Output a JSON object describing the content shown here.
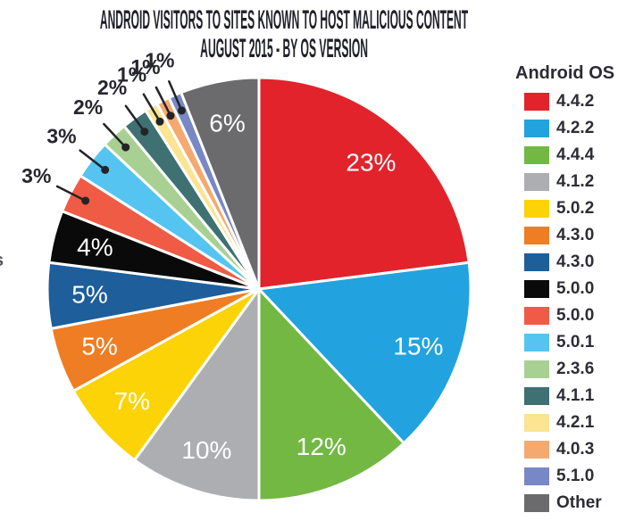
{
  "chart_data": {
    "type": "pie",
    "title": "ANDROID VISITORS TO SITES KNOWN TO HOST MALICIOUS CONTENT",
    "subtitle": "AUGUST 2015 - BY OS VERSION",
    "legend_title": "Android OS",
    "legend_position": "right",
    "start_angle_deg": 0,
    "direction": "clockwise",
    "units": "percent",
    "value_suffix": "%",
    "grid": false,
    "slices": [
      {
        "label": "4.4.2",
        "value": 23,
        "color": "#E2232B",
        "label_placement": "inside"
      },
      {
        "label": "4.2.2",
        "value": 15,
        "color": "#22A3DF",
        "label_placement": "inside"
      },
      {
        "label": "4.4.4",
        "value": 12,
        "color": "#72B843",
        "label_placement": "inside"
      },
      {
        "label": "4.1.2",
        "value": 10,
        "color": "#ACAEB1",
        "label_placement": "inside"
      },
      {
        "label": "5.0.2",
        "value": 7,
        "color": "#FBD306",
        "label_placement": "inside"
      },
      {
        "label": "4.3.0",
        "value": 5,
        "color": "#EF7D23",
        "label_placement": "inside"
      },
      {
        "label": "4.3.0",
        "value": 5,
        "color": "#1D5E9B",
        "label_placement": "inside"
      },
      {
        "label": "5.0.0",
        "value": 4,
        "color": "#0A0A0A",
        "label_placement": "inside"
      },
      {
        "label": "5.0.0",
        "value": 3,
        "color": "#EF5B44",
        "label_placement": "callout"
      },
      {
        "label": "5.0.1",
        "value": 3,
        "color": "#55C4F1",
        "label_placement": "callout"
      },
      {
        "label": "2.3.6",
        "value": 2,
        "color": "#A8D093",
        "label_placement": "callout"
      },
      {
        "label": "4.1.1",
        "value": 2,
        "color": "#3F7173",
        "label_placement": "callout"
      },
      {
        "label": "4.2.1",
        "value": 1,
        "color": "#FBE492",
        "label_placement": "callout"
      },
      {
        "label": "4.0.3",
        "value": 1,
        "color": "#F5A96F",
        "label_placement": "callout"
      },
      {
        "label": "5.1.0",
        "value": 1,
        "color": "#7888C6",
        "label_placement": "callout"
      },
      {
        "label": "Other",
        "value": 6,
        "color": "#6B6B6E",
        "label_placement": "inside"
      }
    ],
    "style": {
      "slice_border_color": "#FFFFFF",
      "callout_line_color": "#242428",
      "inside_label_color": "#FFFFFF",
      "callout_label_color": "#26262E"
    }
  },
  "left_edge_fragment": {
    "text": "s"
  }
}
